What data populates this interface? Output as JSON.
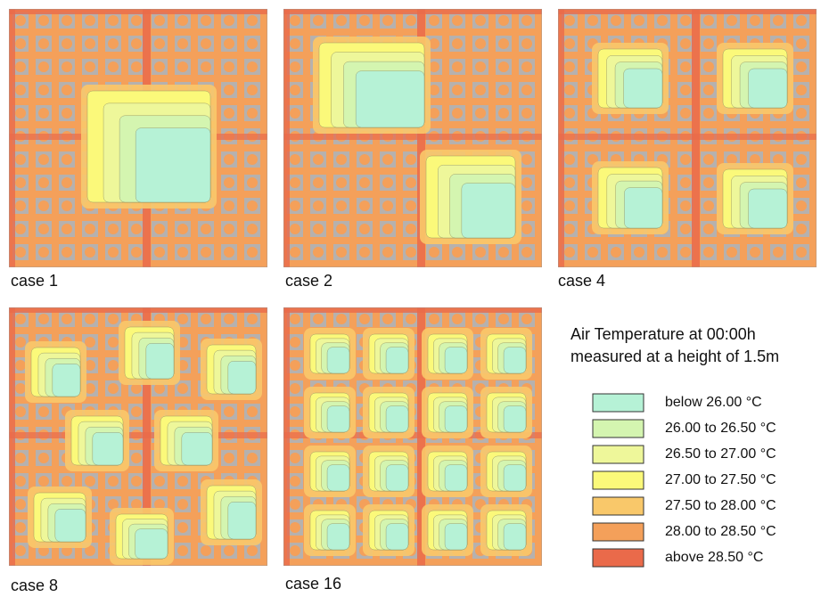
{
  "panels": [
    {
      "label": "case 1"
    },
    {
      "label": "case 2"
    },
    {
      "label": "case 4"
    },
    {
      "label": "case 8"
    },
    {
      "label": "case 16"
    }
  ],
  "legend": {
    "title": [
      "Air Temperature at  00:00h",
      "measured at a height of 1.5m"
    ],
    "items": [
      {
        "label": "below 26.00 °C",
        "color": "#b6f2d6"
      },
      {
        "label": "26.00 to 26.50 °C",
        "color": "#d4f5b0"
      },
      {
        "label": "26.50 to 27.00 °C",
        "color": "#eef79a"
      },
      {
        "label": "27.00 to 27.50 °C",
        "color": "#fbf97a"
      },
      {
        "label": "27.50 to 28.00 °C",
        "color": "#f9c86a"
      },
      {
        "label": "28.00 to 28.50 °C",
        "color": "#f4a05a"
      },
      {
        "label": "above 28.50 °C",
        "color": "#ea6a4a"
      }
    ]
  }
}
